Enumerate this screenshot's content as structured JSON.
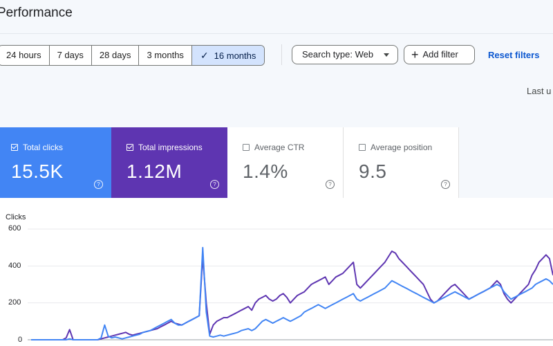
{
  "header": {
    "title": "Performance"
  },
  "date_range": {
    "options": [
      "24 hours",
      "7 days",
      "28 days",
      "3 months",
      "16 months"
    ],
    "selected": "16 months"
  },
  "search_type": {
    "label": "Search type: Web"
  },
  "add_filter": {
    "label": "Add filter"
  },
  "reset_filters": {
    "label": "Reset filters"
  },
  "last_updated": {
    "text": "Last u"
  },
  "metrics": [
    {
      "label": "Total clicks",
      "value": "15.5K",
      "checked": true,
      "color": "#4285f4"
    },
    {
      "label": "Total impressions",
      "value": "1.12M",
      "checked": true,
      "color": "#5e35b1"
    },
    {
      "label": "Average CTR",
      "value": "1.4%",
      "checked": false
    },
    {
      "label": "Average position",
      "value": "9.5",
      "checked": false
    }
  ],
  "colors": {
    "clicks": "#4285f4",
    "impressions": "#5e35b1",
    "accent": "#0b57d0"
  },
  "icons": {
    "check": "check-icon",
    "plus": "plus-icon",
    "caret": "chevron-down-icon",
    "help": "help-icon"
  },
  "chart_data": {
    "type": "line",
    "ylabel": "Clicks",
    "ylim": [
      0,
      600
    ],
    "yticks": [
      0,
      200,
      400,
      600
    ],
    "x_index_range": [
      0,
      149
    ],
    "series": [
      {
        "values": [
          0,
          0,
          0,
          0,
          0,
          0,
          0,
          0,
          0,
          0,
          10,
          55,
          0,
          0,
          0,
          0,
          0,
          0,
          0,
          0,
          5,
          10,
          15,
          20,
          25,
          30,
          35,
          40,
          30,
          25,
          30,
          35,
          40,
          45,
          50,
          55,
          60,
          70,
          80,
          90,
          100,
          90,
          85,
          80,
          90,
          100,
          110,
          120,
          130,
          450,
          200,
          30,
          80,
          100,
          110,
          120,
          120,
          130,
          140,
          150,
          160,
          170,
          180,
          160,
          200,
          220,
          230,
          240,
          220,
          210,
          220,
          240,
          250,
          230,
          200,
          220,
          240,
          250,
          260,
          280,
          300,
          310,
          320,
          330,
          340,
          300,
          320,
          340,
          350,
          360,
          380,
          400,
          420,
          300,
          280,
          300,
          320,
          340,
          360,
          380,
          400,
          420,
          450,
          480,
          470,
          440,
          420,
          400,
          380,
          360,
          340,
          320,
          300,
          260,
          220,
          200,
          210,
          230,
          250,
          270,
          290,
          300,
          280,
          260,
          240,
          220,
          230,
          240,
          250,
          260,
          270,
          280,
          300,
          320,
          300,
          250,
          220,
          200,
          220,
          240,
          260,
          280,
          300,
          350,
          380,
          420,
          440,
          460,
          440,
          350
        ],
        "color": "#5e35b1"
      },
      {
        "values": [
          0,
          0,
          0,
          0,
          0,
          0,
          0,
          0,
          0,
          0,
          0,
          5,
          0,
          0,
          0,
          0,
          0,
          0,
          0,
          0,
          10,
          80,
          20,
          10,
          15,
          10,
          5,
          10,
          15,
          20,
          25,
          30,
          40,
          45,
          50,
          60,
          70,
          80,
          90,
          100,
          110,
          90,
          80,
          80,
          90,
          100,
          110,
          120,
          130,
          500,
          150,
          20,
          15,
          20,
          25,
          20,
          25,
          30,
          35,
          40,
          50,
          55,
          60,
          50,
          60,
          80,
          100,
          110,
          100,
          90,
          100,
          110,
          120,
          110,
          100,
          110,
          120,
          130,
          150,
          160,
          170,
          180,
          190,
          180,
          170,
          180,
          190,
          200,
          210,
          220,
          230,
          240,
          250,
          220,
          210,
          220,
          230,
          240,
          250,
          260,
          270,
          280,
          300,
          320,
          310,
          300,
          290,
          280,
          270,
          260,
          250,
          240,
          230,
          220,
          210,
          200,
          210,
          220,
          230,
          240,
          250,
          260,
          250,
          240,
          230,
          220,
          230,
          240,
          250,
          260,
          270,
          280,
          290,
          300,
          290,
          260,
          240,
          220,
          230,
          240,
          250,
          260,
          270,
          280,
          300,
          310,
          320,
          330,
          320,
          300
        ],
        "color": "#4285f4"
      }
    ]
  }
}
